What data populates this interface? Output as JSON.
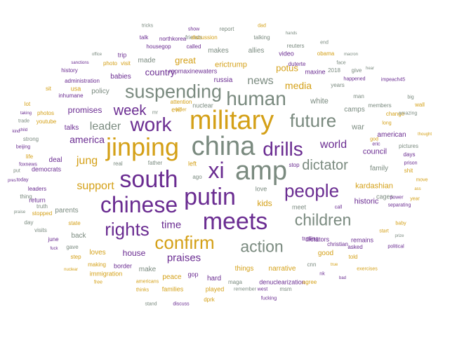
{
  "colors": {
    "purple": "#6a2c91",
    "gold": "#d4a017",
    "gray": "#7a8a7f"
  },
  "words": [
    {
      "text": "military",
      "color": "gold"
    },
    {
      "text": "china",
      "color": "gray"
    },
    {
      "text": "amp",
      "color": "gray"
    },
    {
      "text": "jinping",
      "color": "gold"
    },
    {
      "text": "south",
      "color": "purple"
    },
    {
      "text": "xi",
      "color": "purple"
    },
    {
      "text": "putin",
      "color": "purple"
    },
    {
      "text": "chinese",
      "color": "purple"
    },
    {
      "text": "meets",
      "color": "purple"
    },
    {
      "text": "human",
      "color": "gray"
    },
    {
      "text": "suspending",
      "color": "gray"
    },
    {
      "text": "work",
      "color": "purple"
    },
    {
      "text": "drills",
      "color": "purple"
    },
    {
      "text": "people",
      "color": "purple"
    },
    {
      "text": "future",
      "color": "gray"
    },
    {
      "text": "rights",
      "color": "purple"
    },
    {
      "text": "confirm",
      "color": "gold"
    },
    {
      "text": "children",
      "color": "gray"
    },
    {
      "text": "action",
      "color": "gray"
    },
    {
      "text": "week",
      "color": "purple"
    },
    {
      "text": "dictator",
      "color": "gray"
    },
    {
      "text": "support",
      "color": "gold"
    },
    {
      "text": "news",
      "color": "gray"
    },
    {
      "text": "world",
      "color": "purple"
    },
    {
      "text": "jung",
      "color": "gold"
    },
    {
      "text": "leader",
      "color": "gray"
    },
    {
      "text": "america",
      "color": "purple"
    },
    {
      "text": "time",
      "color": "purple"
    },
    {
      "text": "praises",
      "color": "purple"
    },
    {
      "text": "country",
      "color": "purple"
    },
    {
      "text": "media",
      "color": "gold"
    },
    {
      "text": "potus",
      "color": "gold"
    },
    {
      "text": "great",
      "color": "gold"
    },
    {
      "text": "promises",
      "color": "purple"
    },
    {
      "text": "house",
      "color": "purple"
    },
    {
      "text": "kids",
      "color": "gold"
    },
    {
      "text": "kardashian",
      "color": "gold"
    },
    {
      "text": "historic",
      "color": "purple"
    },
    {
      "text": "council",
      "color": "purple"
    },
    {
      "text": "family",
      "color": "gray"
    },
    {
      "text": "war",
      "color": "gray"
    },
    {
      "text": "camps",
      "color": "gray"
    },
    {
      "text": "american",
      "color": "purple"
    },
    {
      "text": "white",
      "color": "gray"
    },
    {
      "text": "russia",
      "color": "purple"
    },
    {
      "text": "erictrump",
      "color": "gold"
    },
    {
      "text": "allies",
      "color": "gray"
    },
    {
      "text": "makes",
      "color": "gray"
    },
    {
      "text": "video",
      "color": "purple"
    },
    {
      "text": "maxine",
      "color": "purple"
    },
    {
      "text": "duterte",
      "color": "purple"
    },
    {
      "text": "babies",
      "color": "purple"
    },
    {
      "text": "made",
      "color": "gray"
    },
    {
      "text": "policy",
      "color": "gray"
    },
    {
      "text": "talks",
      "color": "purple"
    },
    {
      "text": "deal",
      "color": "purple"
    },
    {
      "text": "parents",
      "color": "gray"
    },
    {
      "text": "back",
      "color": "gray"
    },
    {
      "text": "loves",
      "color": "gold"
    },
    {
      "text": "make",
      "color": "gray"
    },
    {
      "text": "peace",
      "color": "gold"
    },
    {
      "text": "hard",
      "color": "purple"
    },
    {
      "text": "things",
      "color": "gold"
    },
    {
      "text": "narrative",
      "color": "gold"
    },
    {
      "text": "good",
      "color": "gold"
    },
    {
      "text": "love",
      "color": "gray"
    },
    {
      "text": "meet",
      "color": "gray"
    },
    {
      "text": "dictators",
      "color": "purple"
    },
    {
      "text": "denuclearization",
      "color": "purple"
    },
    {
      "text": "remains",
      "color": "purple"
    },
    {
      "text": "cages",
      "color": "gray"
    },
    {
      "text": "stop",
      "color": "purple"
    },
    {
      "text": "nuclear",
      "color": "gray"
    },
    {
      "text": "evil",
      "color": "gold"
    },
    {
      "text": "left",
      "color": "gold"
    },
    {
      "text": "ago",
      "color": "gray"
    },
    {
      "text": "real",
      "color": "gray"
    },
    {
      "text": "father",
      "color": "gray"
    },
    {
      "text": "gop",
      "color": "purple"
    },
    {
      "text": "played",
      "color": "gold"
    },
    {
      "text": "families",
      "color": "gold"
    },
    {
      "text": "border",
      "color": "purple"
    },
    {
      "text": "immigration",
      "color": "gold"
    },
    {
      "text": "return",
      "color": "purple"
    },
    {
      "text": "democrats",
      "color": "purple"
    },
    {
      "text": "usa",
      "color": "gold"
    },
    {
      "text": "administration",
      "color": "purple"
    },
    {
      "text": "history",
      "color": "purple"
    },
    {
      "text": "photo",
      "color": "gold"
    },
    {
      "text": "visit",
      "color": "gold"
    },
    {
      "text": "trip",
      "color": "purple"
    },
    {
      "text": "housegop",
      "color": "purple"
    },
    {
      "text": "northkorea",
      "color": "purple"
    },
    {
      "text": "talk",
      "color": "purple"
    },
    {
      "text": "friends",
      "color": "gray"
    },
    {
      "text": "called",
      "color": "purple"
    },
    {
      "text": "show",
      "color": "purple"
    },
    {
      "text": "report",
      "color": "gray"
    },
    {
      "text": "discussion",
      "color": "gold"
    },
    {
      "text": "talking",
      "color": "gray"
    },
    {
      "text": "reuters",
      "color": "gray"
    },
    {
      "text": "obama",
      "color": "gold"
    },
    {
      "text": "macron",
      "color": "gray"
    },
    {
      "text": "happened",
      "color": "purple"
    },
    {
      "text": "2018",
      "color": "gray"
    },
    {
      "text": "give",
      "color": "gray"
    },
    {
      "text": "years",
      "color": "gray"
    },
    {
      "text": "man",
      "color": "gray"
    },
    {
      "text": "members",
      "color": "gray"
    },
    {
      "text": "change",
      "color": "gold"
    },
    {
      "text": "eric",
      "color": "purple"
    },
    {
      "text": "power",
      "color": "purple"
    },
    {
      "text": "start",
      "color": "gold"
    },
    {
      "text": "call",
      "color": "purple"
    },
    {
      "text": "christian",
      "color": "purple"
    },
    {
      "text": "cnn",
      "color": "gray"
    },
    {
      "text": "nk",
      "color": "purple"
    },
    {
      "text": "true",
      "color": "gold"
    },
    {
      "text": "asked",
      "color": "purple"
    },
    {
      "text": "told",
      "color": "gold"
    },
    {
      "text": "maga",
      "color": "gray"
    },
    {
      "text": "remember",
      "color": "gray"
    },
    {
      "text": "west",
      "color": "purple"
    },
    {
      "text": "msm",
      "color": "gray"
    },
    {
      "text": "agree",
      "color": "gold"
    },
    {
      "text": "trolling",
      "color": "purple"
    },
    {
      "text": "dprk",
      "color": "gold"
    },
    {
      "text": "repmaxinewaters",
      "color": "purple"
    },
    {
      "text": "attention",
      "color": "gold"
    },
    {
      "text": "hitler",
      "color": "gold"
    },
    {
      "text": "mr",
      "color": "gray"
    },
    {
      "text": "lot",
      "color": "gold"
    },
    {
      "text": "sit",
      "color": "gold"
    },
    {
      "text": "inhumane",
      "color": "purple"
    },
    {
      "text": "photos",
      "color": "gold"
    },
    {
      "text": "youtube",
      "color": "gold"
    },
    {
      "text": "strong",
      "color": "gray"
    },
    {
      "text": "beijing",
      "color": "purple"
    },
    {
      "text": "life",
      "color": "gold"
    },
    {
      "text": "foxnews",
      "color": "purple"
    },
    {
      "text": "put",
      "color": "gray"
    },
    {
      "text": "leaders",
      "color": "purple"
    },
    {
      "text": "today",
      "color": "purple"
    },
    {
      "text": "thing",
      "color": "gray"
    },
    {
      "text": "truth",
      "color": "gray"
    },
    {
      "text": "stopped",
      "color": "gold"
    },
    {
      "text": "state",
      "color": "gold"
    },
    {
      "text": "day",
      "color": "gray"
    },
    {
      "text": "visits",
      "color": "gray"
    },
    {
      "text": "june",
      "color": "purple"
    },
    {
      "text": "gave",
      "color": "gray"
    },
    {
      "text": "step",
      "color": "gold"
    },
    {
      "text": "making",
      "color": "gold"
    },
    {
      "text": "tricks",
      "color": "gray"
    },
    {
      "text": "dad",
      "color": "gold"
    },
    {
      "text": "hands",
      "color": "gray"
    },
    {
      "text": "end",
      "color": "gray"
    },
    {
      "text": "office",
      "color": "gray"
    },
    {
      "text": "sanctions",
      "color": "purple"
    },
    {
      "text": "trade",
      "color": "gray"
    },
    {
      "text": "taking",
      "color": "purple"
    },
    {
      "text": "kind",
      "color": "purple"
    },
    {
      "text": "child",
      "color": "purple"
    },
    {
      "text": "pres",
      "color": "purple"
    },
    {
      "text": "praise",
      "color": "gray"
    },
    {
      "text": "fuck",
      "color": "purple"
    },
    {
      "text": "nuclear",
      "color": "gold"
    },
    {
      "text": "free",
      "color": "gold"
    },
    {
      "text": "thinks",
      "color": "gold"
    },
    {
      "text": "americans",
      "color": "gold"
    },
    {
      "text": "stand",
      "color": "gray"
    },
    {
      "text": "discuss",
      "color": "purple"
    },
    {
      "text": "fucking",
      "color": "purple"
    },
    {
      "text": "bad",
      "color": "purple"
    },
    {
      "text": "exercises",
      "color": "gold"
    },
    {
      "text": "prize",
      "color": "gray"
    },
    {
      "text": "political",
      "color": "purple"
    },
    {
      "text": "baby",
      "color": "gold"
    },
    {
      "text": "separating",
      "color": "purple"
    },
    {
      "text": "year",
      "color": "gold"
    },
    {
      "text": "ass",
      "color": "gold"
    },
    {
      "text": "move",
      "color": "gold"
    },
    {
      "text": "shit",
      "color": "gold"
    },
    {
      "text": "prison",
      "color": "purple"
    },
    {
      "text": "days",
      "color": "purple"
    },
    {
      "text": "pictures",
      "color": "gray"
    },
    {
      "text": "god",
      "color": "gold"
    },
    {
      "text": "thought",
      "color": "gold"
    },
    {
      "text": "amazing",
      "color": "gray"
    },
    {
      "text": "wall",
      "color": "gold"
    },
    {
      "text": "big",
      "color": "gray"
    },
    {
      "text": "long",
      "color": "gold"
    },
    {
      "text": "impeach45",
      "color": "purple"
    },
    {
      "text": "hear",
      "color": "gray"
    },
    {
      "text": "face",
      "color": "gray"
    },
    {
      "text": "wanted",
      "color": "purple"
    },
    {
      "text": "times",
      "color": "gold"
    },
    {
      "text": "recent",
      "color": "gold"
    },
    {
      "text": "prez",
      "color": "gray"
    }
  ]
}
